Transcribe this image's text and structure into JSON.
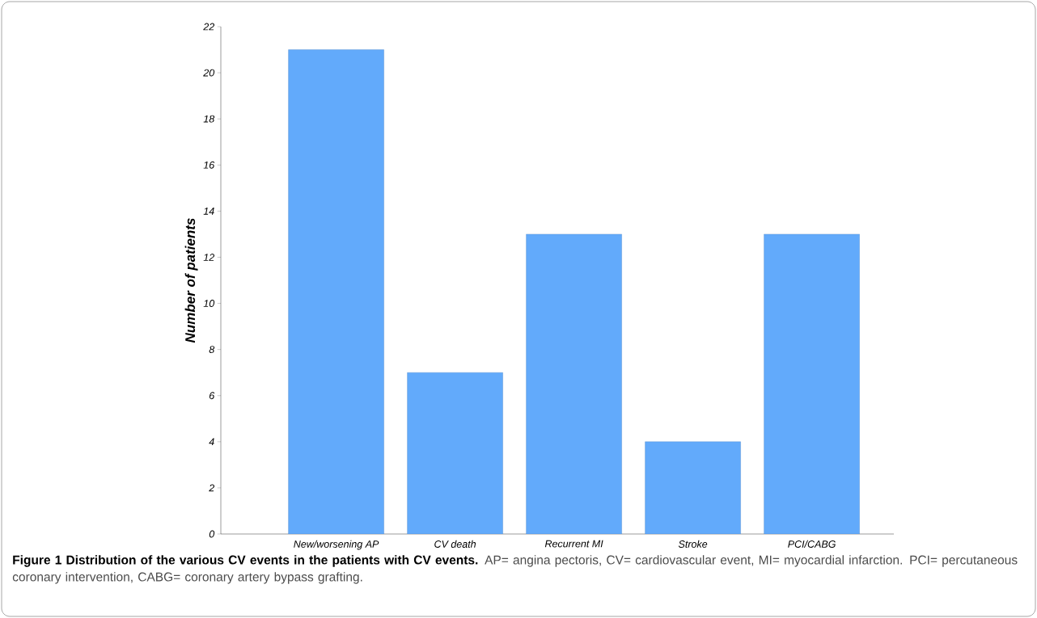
{
  "chart_data": {
    "type": "bar",
    "title": "Figure 1 Distribution of the various CV events in the patients with CV events.",
    "ylabel": "Number of patients",
    "annotations": [
      "AP= angina pectoris, CV= cardiovascular event, MI= myocardial infarction. PCI= percutaneous coronary intervention, CABG= coronary artery bypass grafting."
    ],
    "categories": [
      "New/worsening AP",
      "CV death",
      "Recurrent MI",
      "Stroke",
      "PCI/CABG"
    ],
    "values": [
      21,
      7,
      13,
      4,
      13
    ],
    "color": "#62aafb",
    "ylim": [
      0,
      22
    ],
    "yticks": [
      0,
      2,
      4,
      6,
      8,
      10,
      12,
      14,
      16,
      18,
      20,
      22
    ],
    "grid": false
  }
}
